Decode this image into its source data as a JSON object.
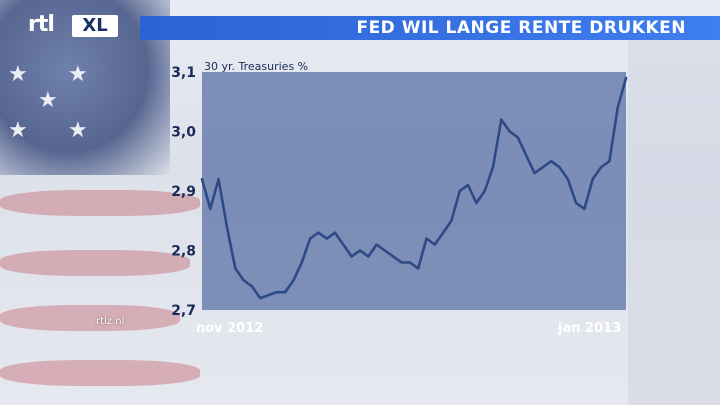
{
  "header": {
    "logo_rtl": "rtl",
    "logo_xl": "XL",
    "title": "FED WIL LANGE RENTE DRUKKEN"
  },
  "footer": {
    "watermark": "rtlz.nl"
  },
  "colors": {
    "title_bar": "#3a74e6",
    "plot_area": "#6b7fae",
    "line": "#2e4a86",
    "tick_text": "#1b2b57"
  },
  "chart_data": {
    "type": "line",
    "title": "",
    "series_label": "30 yr. Treasuries %",
    "xlabel": "",
    "ylabel": "",
    "ylim": [
      2.7,
      3.1
    ],
    "yticks": [
      "2,7",
      "2,8",
      "2,9",
      "3,0",
      "3,1"
    ],
    "ytick_values": [
      2.7,
      2.8,
      2.9,
      3.0,
      3.1
    ],
    "xticks": [
      "nov 2012",
      "jan 2013"
    ],
    "xtick_positions": [
      0,
      59
    ],
    "grid": false,
    "series": [
      {
        "values": [
          2.92,
          2.87,
          2.92,
          2.84,
          2.77,
          2.75,
          2.74,
          2.72,
          2.725,
          2.73,
          2.73,
          2.75,
          2.78,
          2.82,
          2.83,
          2.82,
          2.83,
          2.81,
          2.79,
          2.8,
          2.79,
          2.81,
          2.8,
          2.79,
          2.78,
          2.78,
          2.77,
          2.82,
          2.81,
          2.83,
          2.85,
          2.9,
          2.91,
          2.88,
          2.9,
          2.94,
          3.02,
          3.0,
          2.99,
          2.96,
          2.93,
          2.94,
          2.95,
          2.94,
          2.92,
          2.88,
          2.87,
          2.92,
          2.94,
          2.95,
          3.04,
          3.09
        ]
      }
    ]
  }
}
